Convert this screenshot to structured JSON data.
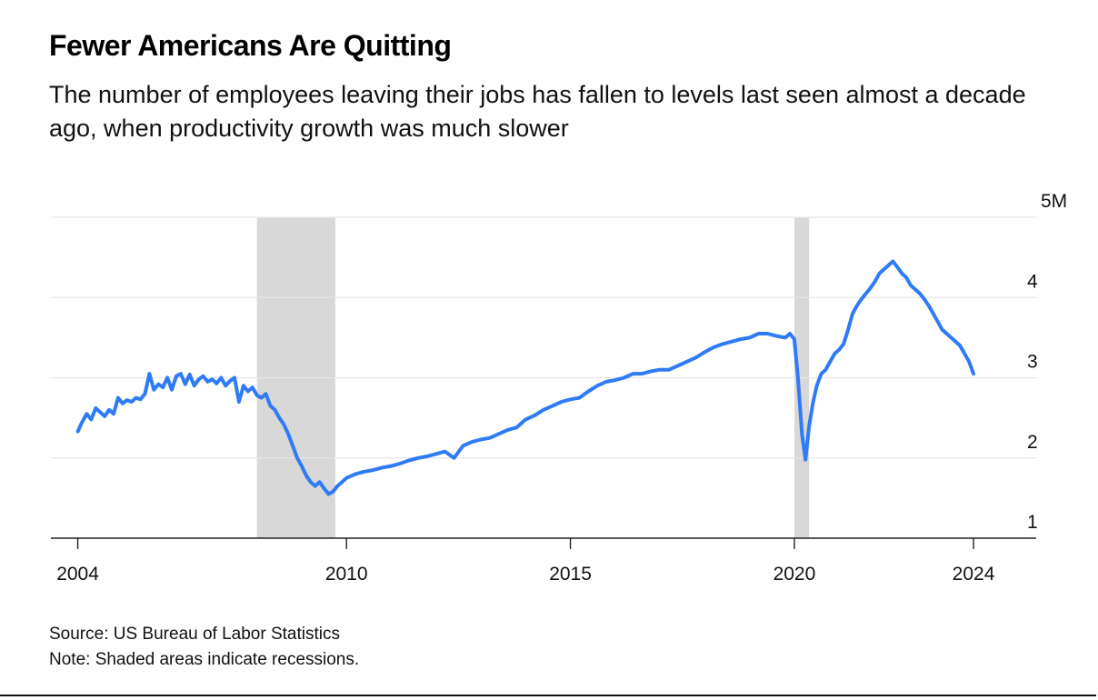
{
  "chart": {
    "title": "Fewer Americans Are Quitting",
    "subtitle": "The number of employees leaving their jobs has fallen to levels last seen almost a decade ago, when productivity growth was much slower",
    "source": "Source: US Bureau of Labor Statistics",
    "note": "Note: Shaded areas indicate recessions."
  },
  "chart_data": {
    "type": "line",
    "title": "Fewer Americans Are Quitting",
    "xlabel": "",
    "ylabel": "",
    "xlim": [
      2003.4,
      2025.4
    ],
    "ylim": [
      1,
      5
    ],
    "x_ticks": [
      {
        "value": 2004,
        "label": "2004"
      },
      {
        "value": 2010,
        "label": "2010"
      },
      {
        "value": 2015,
        "label": "2015"
      },
      {
        "value": 2020,
        "label": "2020"
      },
      {
        "value": 2024,
        "label": "2024"
      }
    ],
    "y_ticks": [
      {
        "value": 1,
        "label": "1"
      },
      {
        "value": 2,
        "label": "2"
      },
      {
        "value": 3,
        "label": "3"
      },
      {
        "value": 4,
        "label": "4"
      },
      {
        "value": 5,
        "label": "5M"
      }
    ],
    "grid": true,
    "line_color": "#2f7bf5",
    "recession_color": "#d8d8d8",
    "recessions": [
      {
        "start": 2008.0,
        "end": 2009.75
      },
      {
        "start": 2020.0,
        "end": 2020.33
      }
    ],
    "series": [
      {
        "x": [
          2004.0,
          2004.1,
          2004.2,
          2004.3,
          2004.4,
          2004.5,
          2004.6,
          2004.7,
          2004.8,
          2004.9,
          2005.0,
          2005.1,
          2005.2,
          2005.3,
          2005.4,
          2005.5,
          2005.6,
          2005.7,
          2005.8,
          2005.9,
          2006.0,
          2006.1,
          2006.2,
          2006.3,
          2006.4,
          2006.5,
          2006.6,
          2006.7,
          2006.8,
          2006.9,
          2007.0,
          2007.1,
          2007.2,
          2007.3,
          2007.4,
          2007.5,
          2007.6,
          2007.7,
          2007.8,
          2007.9,
          2008.0,
          2008.1,
          2008.2,
          2008.3,
          2008.4,
          2008.5,
          2008.6,
          2008.7,
          2008.8,
          2008.9,
          2009.0,
          2009.1,
          2009.2,
          2009.3,
          2009.4,
          2009.5,
          2009.6,
          2009.7,
          2009.8,
          2009.9,
          2010.0,
          2010.2,
          2010.4,
          2010.6,
          2010.8,
          2011.0,
          2011.2,
          2011.4,
          2011.6,
          2011.8,
          2012.0,
          2012.2,
          2012.4,
          2012.6,
          2012.8,
          2013.0,
          2013.2,
          2013.4,
          2013.6,
          2013.8,
          2014.0,
          2014.2,
          2014.4,
          2014.6,
          2014.8,
          2015.0,
          2015.2,
          2015.4,
          2015.6,
          2015.8,
          2016.0,
          2016.2,
          2016.4,
          2016.6,
          2016.8,
          2017.0,
          2017.2,
          2017.4,
          2017.6,
          2017.8,
          2018.0,
          2018.2,
          2018.4,
          2018.6,
          2018.8,
          2019.0,
          2019.2,
          2019.4,
          2019.6,
          2019.8,
          2019.9,
          2020.0,
          2020.08,
          2020.17,
          2020.25,
          2020.33,
          2020.42,
          2020.5,
          2020.6,
          2020.7,
          2020.8,
          2020.9,
          2021.0,
          2021.1,
          2021.2,
          2021.3,
          2021.4,
          2021.5,
          2021.6,
          2021.7,
          2021.8,
          2021.9,
          2022.0,
          2022.1,
          2022.2,
          2022.3,
          2022.4,
          2022.5,
          2022.6,
          2022.7,
          2022.8,
          2022.9,
          2023.0,
          2023.1,
          2023.2,
          2023.3,
          2023.4,
          2023.5,
          2023.6,
          2023.7,
          2023.8,
          2023.9,
          2024.0
        ],
        "y": [
          2.33,
          2.45,
          2.55,
          2.48,
          2.62,
          2.57,
          2.52,
          2.6,
          2.55,
          2.75,
          2.68,
          2.72,
          2.7,
          2.75,
          2.73,
          2.8,
          3.05,
          2.85,
          2.92,
          2.88,
          3.0,
          2.85,
          3.02,
          3.05,
          2.92,
          3.04,
          2.9,
          2.98,
          3.02,
          2.95,
          2.98,
          2.93,
          3.0,
          2.9,
          2.96,
          3.0,
          2.7,
          2.9,
          2.83,
          2.88,
          2.78,
          2.75,
          2.8,
          2.65,
          2.6,
          2.5,
          2.42,
          2.3,
          2.15,
          2.0,
          1.9,
          1.78,
          1.7,
          1.65,
          1.7,
          1.62,
          1.55,
          1.58,
          1.65,
          1.7,
          1.75,
          1.8,
          1.83,
          1.85,
          1.88,
          1.9,
          1.93,
          1.97,
          2.0,
          2.02,
          2.05,
          2.08,
          2.0,
          2.15,
          2.2,
          2.23,
          2.25,
          2.3,
          2.35,
          2.38,
          2.48,
          2.53,
          2.6,
          2.65,
          2.7,
          2.73,
          2.75,
          2.83,
          2.9,
          2.95,
          2.97,
          3.0,
          3.05,
          3.05,
          3.08,
          3.1,
          3.1,
          3.15,
          3.2,
          3.25,
          3.32,
          3.38,
          3.42,
          3.45,
          3.48,
          3.5,
          3.55,
          3.55,
          3.52,
          3.5,
          3.55,
          3.48,
          3.0,
          2.3,
          1.98,
          2.4,
          2.7,
          2.9,
          3.05,
          3.1,
          3.2,
          3.3,
          3.35,
          3.42,
          3.6,
          3.8,
          3.9,
          3.98,
          4.05,
          4.12,
          4.2,
          4.3,
          4.35,
          4.4,
          4.45,
          4.38,
          4.3,
          4.25,
          4.15,
          4.1,
          4.05,
          3.98,
          3.9,
          3.8,
          3.7,
          3.6,
          3.55,
          3.5,
          3.45,
          3.4,
          3.3,
          3.2,
          3.05
        ]
      }
    ]
  }
}
